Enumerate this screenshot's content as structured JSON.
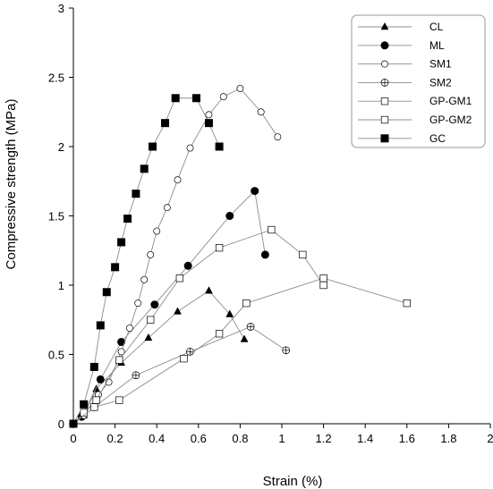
{
  "chart_data": {
    "type": "line",
    "title": "",
    "xlabel": "Strain (%)",
    "ylabel": "Compressive strength (MPa)",
    "xlim": [
      0,
      2
    ],
    "ylim": [
      0,
      3
    ],
    "xticks": [
      "0",
      "0.2",
      "0.4",
      "0.6",
      "0.8",
      "1",
      "1.2",
      "1.4",
      "1.6",
      "1.8",
      "2"
    ],
    "yticks": [
      "0",
      "0.5",
      "1",
      "1.5",
      "2",
      "2.5",
      "3"
    ],
    "xtick_values": [
      0,
      0.2,
      0.4,
      0.6,
      0.8,
      1,
      1.2,
      1.4,
      1.6,
      1.8,
      2
    ],
    "ytick_values": [
      0,
      0.5,
      1,
      1.5,
      2,
      2.5,
      3
    ],
    "grid": false,
    "legend_position": "top-right",
    "series": [
      {
        "name": "CL",
        "marker": "filled-triangle",
        "x": [
          0,
          0.05,
          0.11,
          0.23,
          0.36,
          0.5,
          0.65,
          0.75,
          0.82
        ],
        "y": [
          0,
          0.06,
          0.25,
          0.44,
          0.62,
          0.81,
          0.96,
          0.79,
          0.61
        ]
      },
      {
        "name": "ML",
        "marker": "filled-circle",
        "x": [
          0,
          0.04,
          0.13,
          0.23,
          0.39,
          0.55,
          0.75,
          0.87,
          0.92
        ],
        "y": [
          0,
          0.05,
          0.32,
          0.59,
          0.86,
          1.14,
          1.5,
          1.68,
          1.22
        ]
      },
      {
        "name": "SM1",
        "marker": "open-circle",
        "x": [
          0,
          0.05,
          0.12,
          0.17,
          0.23,
          0.27,
          0.31,
          0.34,
          0.37,
          0.4,
          0.45,
          0.5,
          0.56,
          0.65,
          0.72,
          0.8,
          0.9,
          0.98
        ],
        "y": [
          0,
          0.06,
          0.21,
          0.3,
          0.52,
          0.69,
          0.87,
          1.04,
          1.22,
          1.39,
          1.56,
          1.76,
          1.99,
          2.23,
          2.36,
          2.42,
          2.25,
          2.07
        ]
      },
      {
        "name": "SM2",
        "marker": "circle-plus",
        "x": [
          0,
          0.1,
          0.3,
          0.56,
          0.85,
          1.02
        ],
        "y": [
          0,
          0.12,
          0.35,
          0.52,
          0.7,
          0.53
        ]
      },
      {
        "name": "GP-GM1",
        "marker": "open-square",
        "x": [
          0,
          0.05,
          0.11,
          0.22,
          0.37,
          0.51,
          0.7,
          0.95,
          1.1,
          1.2
        ],
        "y": [
          0,
          0.08,
          0.17,
          0.46,
          0.75,
          1.05,
          1.27,
          1.4,
          1.22,
          1.0
        ]
      },
      {
        "name": "GP-GM2",
        "marker": "open-square",
        "x": [
          0,
          0.1,
          0.22,
          0.53,
          0.7,
          0.83,
          1.2,
          1.6
        ],
        "y": [
          0,
          0.12,
          0.17,
          0.47,
          0.65,
          0.87,
          1.05,
          0.87
        ]
      },
      {
        "name": "GC",
        "marker": "filled-square",
        "x": [
          0,
          0.05,
          0.1,
          0.13,
          0.16,
          0.2,
          0.23,
          0.26,
          0.3,
          0.34,
          0.38,
          0.44,
          0.49,
          0.59,
          0.65,
          0.7
        ],
        "y": [
          0,
          0.14,
          0.41,
          0.71,
          0.95,
          1.13,
          1.31,
          1.48,
          1.66,
          1.84,
          2.0,
          2.17,
          2.35,
          2.35,
          2.17,
          2.0
        ]
      }
    ]
  },
  "colors": {
    "line": "#8c8c8c",
    "marker": "#000000",
    "legend_border": "#9a9a9a",
    "background": "#ffffff"
  }
}
